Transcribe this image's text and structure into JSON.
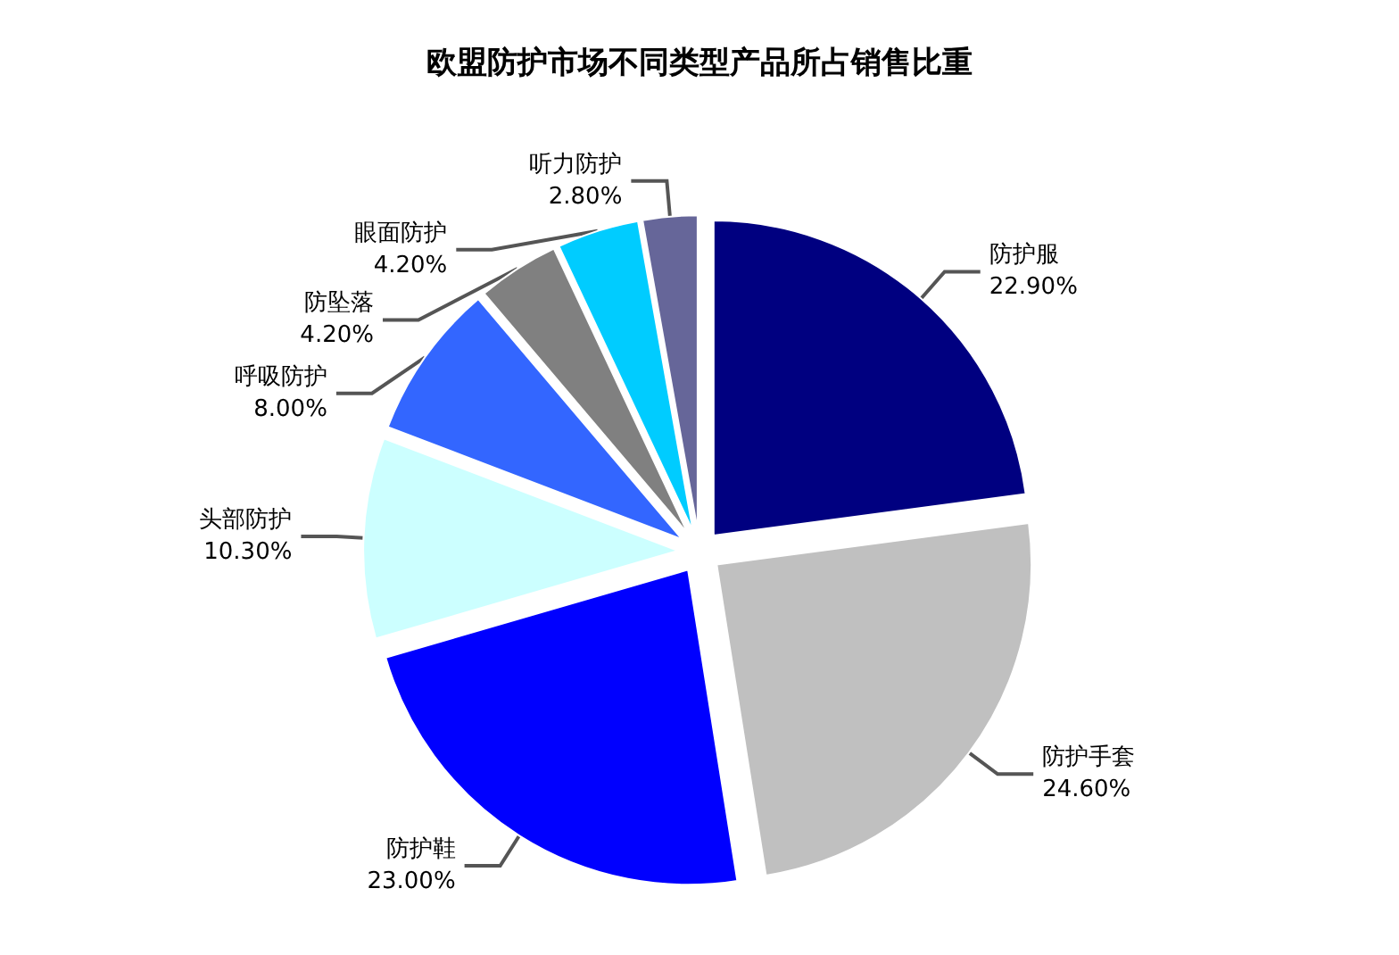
{
  "chart_data": {
    "type": "pie",
    "title": "欧盟防护市场不同类型产品所占销售比重",
    "categories": [
      "防护服",
      "防护手套",
      "防护鞋",
      "头部防护",
      "呼吸防护",
      "防坠落",
      "眼面防护",
      "听力防护"
    ],
    "values": [
      22.9,
      24.6,
      23.0,
      10.3,
      8.0,
      4.2,
      4.2,
      2.8
    ],
    "value_labels": [
      "22.90%",
      "24.60%",
      "23.00%",
      "10.30%",
      "8.00%",
      "4.20%",
      "4.20%",
      "2.80%"
    ],
    "colors": [
      "#000080",
      "#c0c0c0",
      "#0000ff",
      "#ccffff",
      "#3366ff",
      "#808080",
      "#00ccff",
      "#666699"
    ],
    "legend": false
  }
}
